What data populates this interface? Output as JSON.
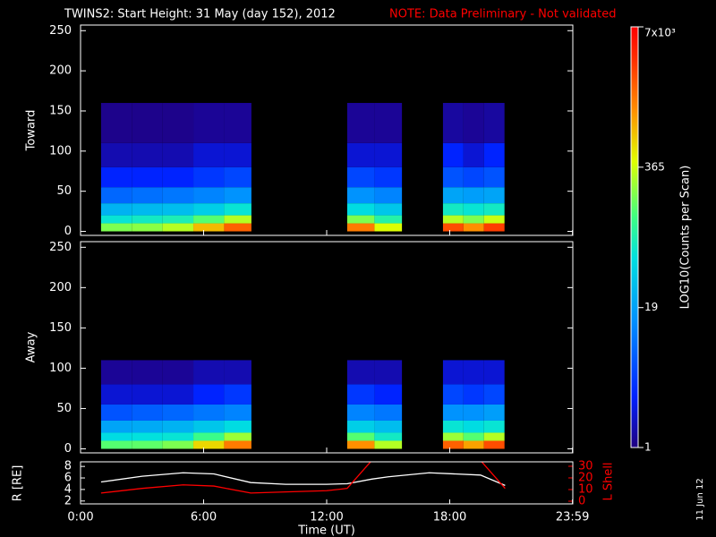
{
  "chart_data": [
    {
      "type": "heatmap",
      "title": "TWINS2: Start Height: 31 May (day 152), 2012",
      "note": "NOTE: Data Preliminary - Not validated",
      "note_color": "#ff0000",
      "ylabel": "Toward",
      "xlim": [
        0,
        24
      ],
      "ylim": [
        -5,
        257
      ],
      "yticks": [
        0,
        50,
        100,
        150,
        200,
        250
      ],
      "x_bins": [
        1,
        2.5,
        4,
        5.5,
        7,
        8.33,
        13,
        14.33,
        15.67,
        17.67,
        18.67,
        19.67,
        20.67
      ],
      "y_bins": [
        0,
        10,
        20,
        35,
        55,
        80,
        110,
        160
      ],
      "z": [
        [
          200,
          60,
          25,
          8,
          3,
          1.5,
          1.1
        ],
        [
          220,
          70,
          28,
          9,
          3,
          1.5,
          1.1
        ],
        [
          300,
          80,
          30,
          10,
          3,
          1.5,
          1.1
        ],
        [
          800,
          150,
          40,
          12,
          4,
          2,
          1.2
        ],
        [
          2000,
          300,
          60,
          15,
          5,
          2,
          1.2
        ],
        null,
        [
          1500,
          200,
          50,
          15,
          5,
          2,
          1.2
        ],
        [
          400,
          90,
          35,
          12,
          4,
          2,
          1.2
        ],
        null,
        [
          2500,
          300,
          70,
          20,
          6,
          3,
          1.3
        ],
        [
          1200,
          200,
          60,
          18,
          5,
          2,
          1.2
        ],
        [
          3000,
          350,
          70,
          20,
          6,
          3,
          1.3
        ]
      ],
      "colorbar": {
        "label": "LOG10(Counts per Scan)",
        "scale": "log",
        "lim": [
          1,
          7000
        ],
        "ticks": [
          1,
          19,
          365,
          {
            "value": 7000,
            "label": "7x10³"
          }
        ]
      }
    },
    {
      "type": "heatmap",
      "ylabel": "Away",
      "xlim": [
        0,
        24
      ],
      "ylim": [
        -5,
        257
      ],
      "yticks": [
        0,
        50,
        100,
        150,
        200,
        250
      ],
      "x_bins": [
        1,
        2.5,
        4,
        5.5,
        7,
        8.33,
        13,
        14.33,
        15.67,
        17.67,
        18.67,
        19.67,
        20.67
      ],
      "y_bins": [
        0,
        10,
        20,
        35,
        55,
        80,
        110
      ],
      "z": [
        [
          150,
          50,
          20,
          6,
          2,
          1.2
        ],
        [
          160,
          55,
          22,
          7,
          2,
          1.2
        ],
        [
          200,
          60,
          25,
          8,
          2,
          1.2
        ],
        [
          600,
          120,
          35,
          10,
          3,
          1.5
        ],
        [
          1500,
          250,
          50,
          12,
          4,
          1.5
        ],
        null,
        [
          1200,
          150,
          40,
          12,
          4,
          1.5
        ],
        [
          300,
          70,
          30,
          10,
          3,
          1.5
        ],
        null,
        [
          2000,
          250,
          60,
          15,
          5,
          2
        ],
        [
          1000,
          150,
          50,
          15,
          4,
          2
        ],
        [
          2500,
          300,
          60,
          18,
          5,
          2
        ]
      ]
    },
    {
      "type": "line",
      "xlabel": "Time (UT)",
      "ylabel": "R [RE]",
      "y2label": "L Shell",
      "stamp": "11 Jun 12",
      "xlim": [
        0,
        24
      ],
      "xticks": [
        {
          "value": 0,
          "label": "0:00"
        },
        {
          "value": 6,
          "label": "6:00"
        },
        {
          "value": 12,
          "label": "12:00"
        },
        {
          "value": 18,
          "label": "18:00"
        },
        {
          "value": 23.983,
          "label": "23:59"
        }
      ],
      "ylim": [
        1.5,
        8.8
      ],
      "yticks": [
        2,
        4,
        6,
        8
      ],
      "y2lim": [
        -2.3,
        33.8
      ],
      "y2ticks": [
        0,
        10,
        20,
        30
      ],
      "y2color": "#ff0000",
      "x": [
        1,
        3,
        5,
        6.5,
        8.3,
        10,
        12,
        13,
        14.2,
        15,
        17,
        19.5,
        20.7
      ],
      "series": [
        {
          "color": "#ffffff",
          "values": [
            5.3,
            6.3,
            6.9,
            6.7,
            5.2,
            4.9,
            4.9,
            5.0,
            5.8,
            6.2,
            6.9,
            6.5,
            4.7
          ]
        },
        {
          "color": "#ff0000",
          "axis": "y2",
          "values": [
            7,
            11,
            14,
            13,
            7,
            8,
            9,
            11,
            35,
            null,
            null,
            35,
            11
          ]
        }
      ]
    }
  ]
}
